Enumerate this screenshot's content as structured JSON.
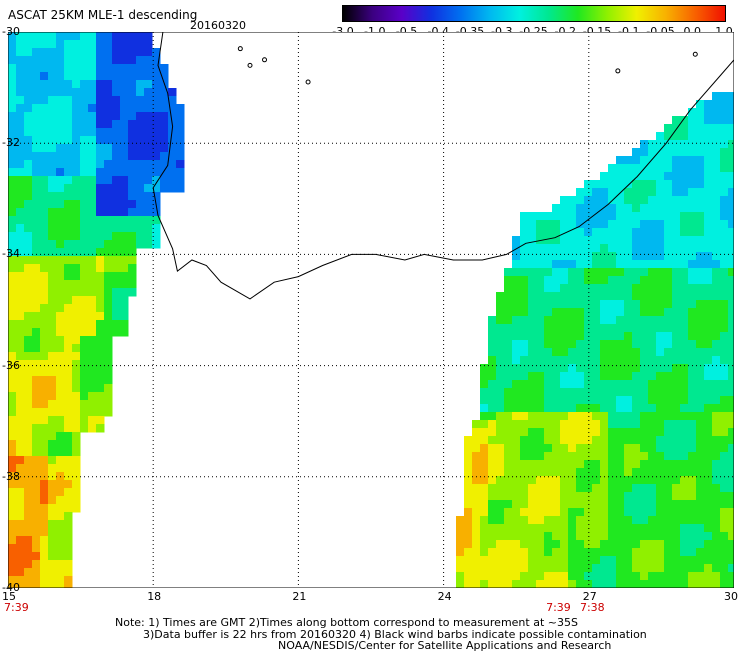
{
  "header": {
    "title": "ASCAT 25KM MLE-1 descending",
    "date": "20160320"
  },
  "colorbar": {
    "labels": [
      "-3.0",
      "-1.0",
      "-0.5",
      "-0.4",
      "-0.35",
      "-0.3",
      "-0.25",
      "-0.2",
      "-0.15",
      "-0.1",
      "-0.05",
      "0.0",
      "1.0"
    ],
    "colors": [
      "#000000",
      "#3b0080",
      "#5a00c8",
      "#1030e0",
      "#0070f0",
      "#00b8f0",
      "#00f0e0",
      "#00e890",
      "#20e820",
      "#90f000",
      "#f0f000",
      "#f8b000",
      "#f86000",
      "#f01000"
    ]
  },
  "map": {
    "lon_range": [
      15,
      30
    ],
    "lat_range": [
      -40,
      -30
    ],
    "lon_ticks": [
      "15",
      "18",
      "21",
      "24",
      "27",
      "30"
    ],
    "lat_ticks": [
      "-30",
      "-32",
      "-34",
      "-36",
      "-38",
      "-40"
    ],
    "grid": true,
    "coastline_color": "#000000"
  },
  "time_labels": [
    {
      "text": "7:39",
      "lon": 15.0
    },
    {
      "text": "7:39",
      "lon": 26.2
    },
    {
      "text": "7:38",
      "lon": 26.9
    }
  ],
  "notes": [
    "Note: 1) Times are GMT 2)Times along bottom correspond to measurement at ~35S",
    "3)Data buffer is 22 hrs from 20160320 4) Black wind barbs indicate possible contamination",
    "NOAA/NESDIS/Center for Satellite Applications and Research"
  ]
}
